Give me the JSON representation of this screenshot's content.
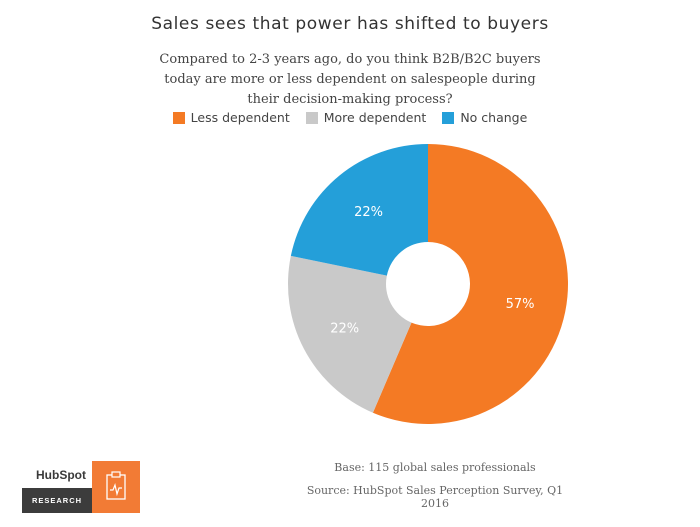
{
  "chart_data": {
    "type": "pie",
    "title": "Sales sees that power has shifted to buyers",
    "subtitle": "Compared to 2-3 years ago, do you think B2B/B2C buyers today are more or less dependent on salespeople during their decision-making process?",
    "legend_position": "top",
    "donut": true,
    "slices": [
      {
        "label": "Less dependent",
        "value": 57,
        "display": "57%",
        "color": "#f47a24"
      },
      {
        "label": "More dependent",
        "value": 22,
        "display": "22%",
        "color": "#c9c9c9"
      },
      {
        "label": "No change",
        "value": 22,
        "display": "22%",
        "color": "#249fd9"
      }
    ]
  },
  "footer": {
    "base": "Base: 115 global sales professionals",
    "source": "Source: HubSpot Sales Perception Survey, Q1 2016"
  },
  "logo": {
    "name": "HubSpot",
    "label": "RESEARCH",
    "icon": "clipboard-chart-icon",
    "accent": "#f27b35",
    "bar_color": "#3c3c3c"
  }
}
